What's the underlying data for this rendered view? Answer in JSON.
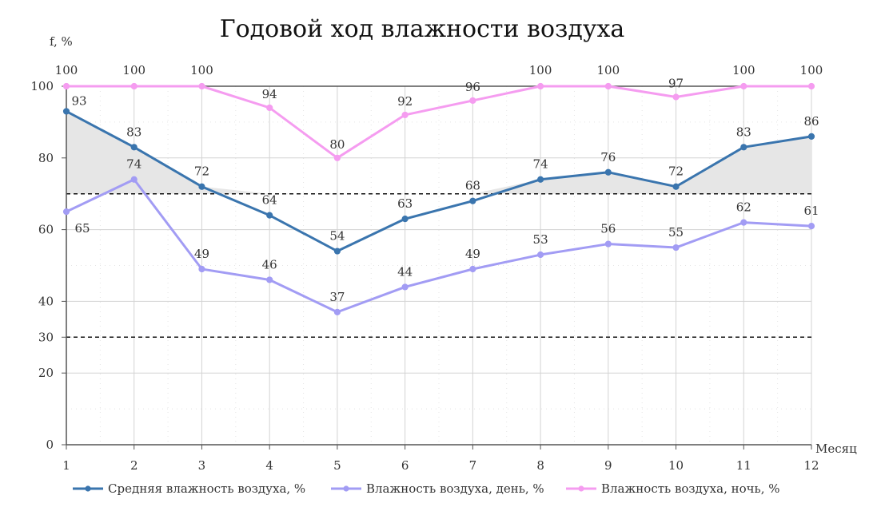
{
  "chart_data": {
    "type": "line",
    "title": "Годовой ход влажности воздуха",
    "xlabel": "Месяц",
    "ylabel": "f, %",
    "x": [
      "1",
      "2",
      "3",
      "4",
      "5",
      "6",
      "7",
      "8",
      "9",
      "10",
      "11",
      "12"
    ],
    "xlim": [
      1,
      12
    ],
    "ylim": [
      0,
      100
    ],
    "yticks": [
      0,
      20,
      30,
      40,
      60,
      80,
      100
    ],
    "grid": true,
    "reference_lines": [
      70,
      30
    ],
    "shaded_region": {
      "between": "series_0",
      "and": 70,
      "where": "above"
    },
    "legend_position": "bottom",
    "series": [
      {
        "name": "Средняя влажность воздуха, %",
        "color": "#3a75ae",
        "values": [
          93,
          83,
          72,
          64,
          54,
          63,
          68,
          74,
          76,
          72,
          83,
          86
        ]
      },
      {
        "name": "Влажность воздуха, день, %",
        "color": "#a29cf4",
        "values": [
          65,
          74,
          49,
          46,
          37,
          44,
          49,
          53,
          56,
          55,
          62,
          61
        ]
      },
      {
        "name": "Влажность воздуха, ночь, %",
        "color": "#f59cf0",
        "values": [
          100,
          100,
          100,
          94,
          80,
          92,
          96,
          100,
          100,
          97,
          100,
          100
        ]
      }
    ]
  }
}
